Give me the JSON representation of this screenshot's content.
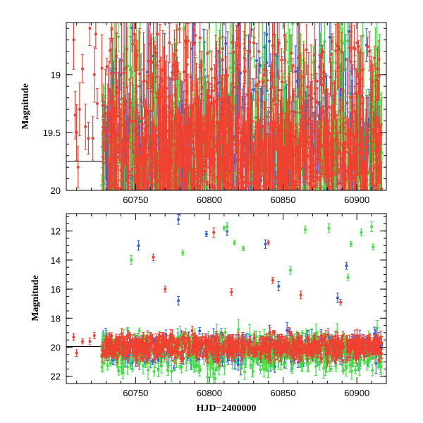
{
  "chart_data": [
    {
      "type": "scatter",
      "title": "",
      "xlabel": "",
      "ylabel": "Magnitude",
      "xlim": [
        60703,
        60920
      ],
      "ylim": [
        20.0,
        18.55
      ],
      "y_inverted": true,
      "x_ticks": [
        60750,
        60800,
        60850,
        60900
      ],
      "y_ticks": [
        19,
        19.5,
        20
      ],
      "y_tick_labels": [
        "19",
        "19.5",
        "20"
      ],
      "grid": false,
      "legend": "none",
      "errorbars": true,
      "reference_line": [
        {
          "x": 60703,
          "y": 19.75
        },
        {
          "x": 60728,
          "y": 19.75
        }
      ],
      "series": [
        {
          "color": "#3060e8",
          "x_range": [
            60727,
            60917
          ],
          "y_range": [
            18.55,
            20.0
          ],
          "count": 450
        },
        {
          "color": "#40e040",
          "x_range": [
            60727,
            60917
          ],
          "y_range": [
            18.55,
            20.0
          ],
          "count": 450
        },
        {
          "color": "#f04030",
          "x_range": [
            60727,
            60917
          ],
          "y_range": [
            18.55,
            20.0
          ],
          "count": 1100
        },
        {
          "color": "#f04030",
          "points": [
            [
              60708,
              18.7
            ],
            [
              60709,
              19.35
            ],
            [
              60710,
              19.5
            ],
            [
              60711,
              19.8
            ],
            [
              60712,
              19.3
            ],
            [
              60714,
              18.95
            ],
            [
              60716,
              19.45
            ],
            [
              60718,
              19.55
            ],
            [
              60719,
              18.6
            ],
            [
              60721,
              19.55
            ],
            [
              60722,
              19.0
            ],
            [
              60723,
              18.65
            ],
            [
              60724,
              19.25
            ]
          ]
        }
      ]
    },
    {
      "type": "scatter",
      "title": "",
      "xlabel": "HJD−2400000",
      "ylabel": "Magnitude",
      "xlim": [
        60703,
        60920
      ],
      "ylim": [
        22.5,
        10.8
      ],
      "y_inverted": true,
      "x_ticks": [
        60750,
        60800,
        60850,
        60900
      ],
      "y_ticks": [
        12,
        14,
        16,
        18,
        20,
        22
      ],
      "grid": false,
      "legend": "none",
      "errorbars": true,
      "reference_line": [
        {
          "x": 60703,
          "y": 19.95
        },
        {
          "x": 60728,
          "y": 19.95
        }
      ],
      "series": [
        {
          "color": "#3060e8",
          "band": [
            18.6,
            21.8
          ],
          "count": 300,
          "outliers": [
            [
              60752,
              13.0
            ],
            [
              60779,
              11.2
            ],
            [
              60798,
              12.2
            ],
            [
              60812,
              12.0
            ],
            [
              60838,
              12.9
            ],
            [
              60893,
              14.4
            ],
            [
              60887,
              16.6
            ],
            [
              60779,
              16.8
            ],
            [
              60847,
              15.8
            ]
          ]
        },
        {
          "color": "#40e040",
          "band": [
            18.4,
            22.4
          ],
          "count": 520,
          "outliers": [
            [
              60747,
              14.0
            ],
            [
              60782,
              13.5
            ],
            [
              60810,
              11.8
            ],
            [
              60812,
              11.7
            ],
            [
              60817,
              12.8
            ],
            [
              60823,
              13.2
            ],
            [
              60855,
              14.7
            ],
            [
              60865,
              11.9
            ],
            [
              60881,
              11.8
            ],
            [
              60894,
              15.2
            ],
            [
              60896,
              12.9
            ],
            [
              60903,
              12.1
            ],
            [
              60910,
              11.7
            ],
            [
              60911,
              13.1
            ]
          ]
        },
        {
          "color": "#f04030",
          "band": [
            18.8,
            21.2
          ],
          "count": 900,
          "outliers": [
            [
              60762,
              13.8
            ],
            [
              60803,
              12.1
            ],
            [
              60840,
              12.8
            ],
            [
              60843,
              15.4
            ],
            [
              60770,
              16.0
            ],
            [
              60815,
              16.2
            ],
            [
              60862,
              16.4
            ],
            [
              60889,
              16.9
            ],
            [
              60708,
              19.3
            ],
            [
              60710,
              20.4
            ],
            [
              60714,
              19.6
            ],
            [
              60719,
              19.6
            ],
            [
              60722,
              19.2
            ]
          ]
        }
      ]
    }
  ]
}
